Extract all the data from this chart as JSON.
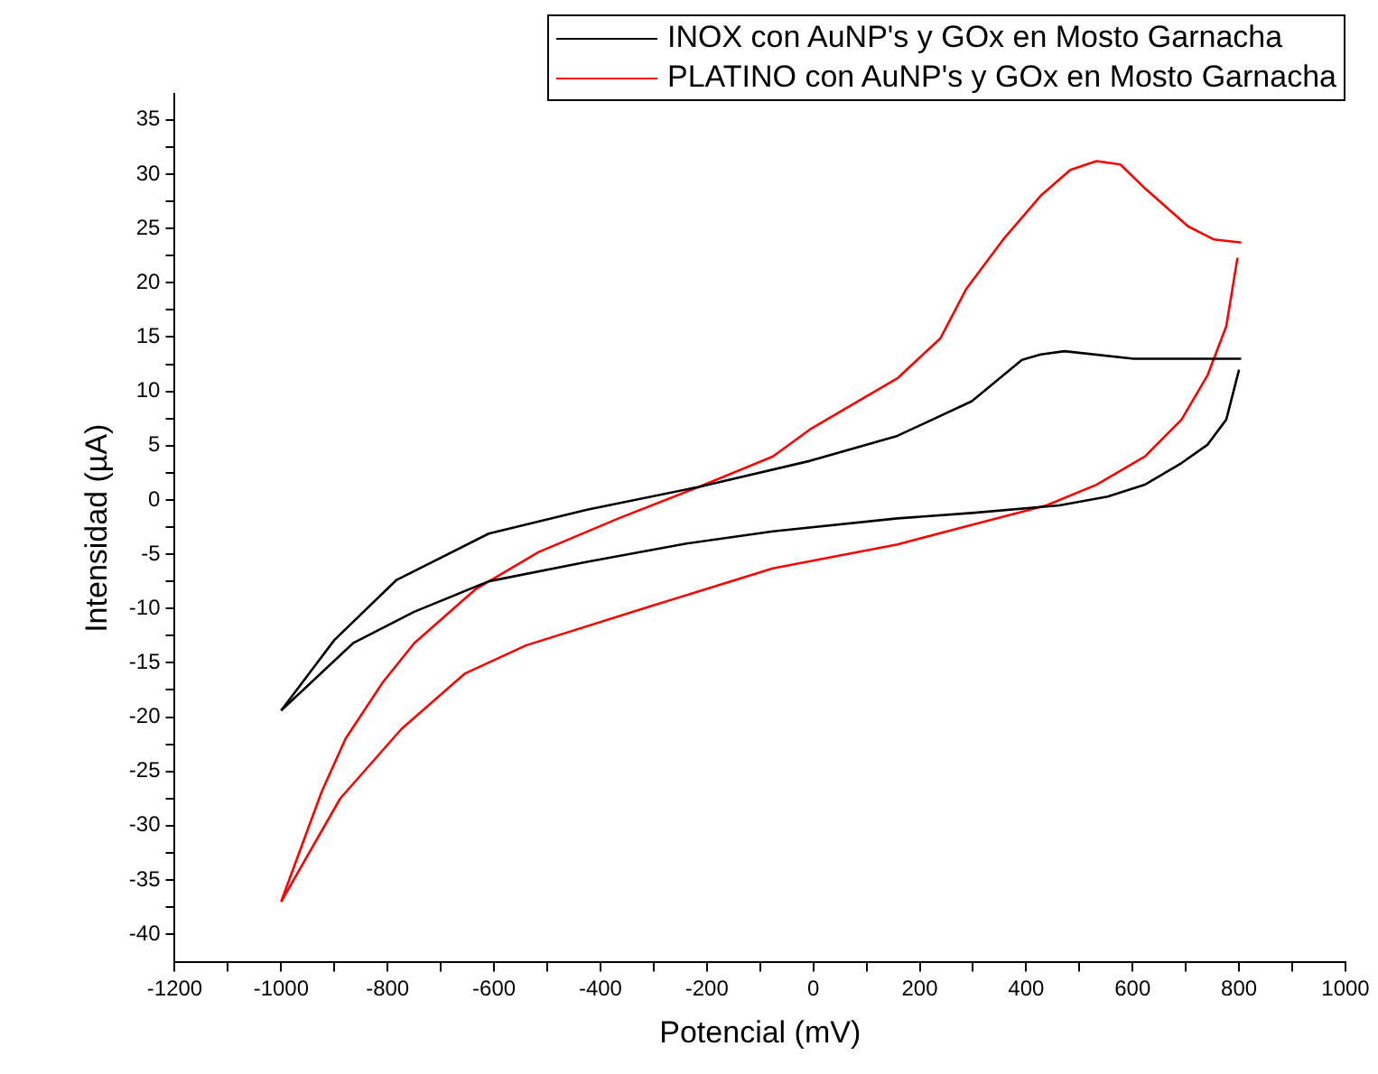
{
  "chart_data": {
    "type": "line",
    "xlabel": "Potencial (mV)",
    "ylabel": "Intensidad (µA)",
    "xlim": [
      -1200,
      1000
    ],
    "ylim": [
      -42.6,
      37.4
    ],
    "xticks": [
      -1200,
      {
        "value": -1100,
        "label": null
      },
      -1000,
      {
        "value": -900,
        "label": null
      },
      -800,
      {
        "value": -700,
        "label": null
      },
      -600,
      {
        "value": -500,
        "label": null
      },
      -400,
      {
        "value": -300,
        "label": null
      },
      -200,
      {
        "value": -100,
        "label": null
      },
      0,
      {
        "value": 100,
        "label": null
      },
      200,
      {
        "value": 300,
        "label": null
      },
      400,
      {
        "value": 500,
        "label": null
      },
      600,
      {
        "value": 700,
        "label": null
      },
      800,
      {
        "value": 900,
        "label": null
      },
      1000
    ],
    "yticks": [
      -40,
      {
        "value": -37.5,
        "label": null
      },
      -35,
      {
        "value": -32.5,
        "label": null
      },
      -30,
      {
        "value": -27.5,
        "label": null
      },
      -25,
      {
        "value": -22.5,
        "label": null
      },
      -20,
      {
        "value": -17.5,
        "label": null
      },
      -15,
      {
        "value": -12.5,
        "label": null
      },
      -10,
      {
        "value": -7.5,
        "label": null
      },
      -5,
      {
        "value": -2.5,
        "label": null
      },
      0,
      {
        "value": 2.5,
        "label": null
      },
      5,
      {
        "value": 7.5,
        "label": null
      },
      10,
      {
        "value": 12.5,
        "label": null
      },
      15,
      {
        "value": 17.5,
        "label": null
      },
      20,
      {
        "value": 22.5,
        "label": null
      },
      25,
      {
        "value": 27.5,
        "label": null
      },
      30,
      {
        "value": 32.5,
        "label": null
      },
      35
    ],
    "grid": false,
    "legend": "top right",
    "marker": "none",
    "line_style": "solid",
    "series": [
      {
        "name": "INOX con AuNP's y GOx en Mosto Garnacha",
        "color": "#000000",
        "x": [
          -1000,
          -900,
          -784,
          -610,
          -425,
          -215,
          -6,
          158,
          298,
          392,
          427,
          472,
          602,
          804
        ],
        "values": [
          -19.4,
          -12.9,
          -7.4,
          -3.1,
          -0.9,
          1.2,
          3.6,
          5.9,
          9.1,
          12.9,
          13.4,
          13.7,
          13.0,
          13.0
        ]
      },
      {
        "color": "#000000",
        "x": [
          -1000,
          -865,
          -750,
          -610,
          -425,
          -236,
          -76,
          158,
          298,
          462,
          553,
          623,
          692,
          741,
          776,
          800
        ],
        "values": [
          -19.4,
          -13.2,
          -10.3,
          -7.5,
          -5.7,
          -4.0,
          -2.9,
          -1.7,
          -1.2,
          -0.5,
          0.3,
          1.4,
          3.4,
          5.1,
          7.4,
          12.0
        ]
      },
      {
        "name": "PLATINO con AuNP's y GOx en Mosto Garnacha",
        "color": "#ff0000",
        "x": [
          -1000,
          -924,
          -879,
          -809,
          -750,
          -634,
          -516,
          -366,
          -215,
          -76,
          -6,
          158,
          239,
          287,
          357,
          427,
          483,
          532,
          577,
          623,
          704,
          752,
          804
        ],
        "values": [
          -37,
          -26.9,
          -22,
          -16.8,
          -13.2,
          -8.2,
          -4.8,
          -1.7,
          1.2,
          4.0,
          6.5,
          11.2,
          14.9,
          19.4,
          24,
          28,
          30.4,
          31.2,
          30.9,
          28.7,
          25.2,
          24,
          23.7
        ]
      },
      {
        "color": "#ff0000",
        "x": [
          -1000,
          -889,
          -774,
          -655,
          -540,
          -306,
          -76,
          158,
          274,
          438,
          532,
          623,
          692,
          741,
          776,
          797
        ],
        "values": [
          -37,
          -27.5,
          -21.1,
          -16,
          -13.4,
          -9.8,
          -6.3,
          -4.1,
          -2.6,
          -0.5,
          1.4,
          4,
          7.4,
          11.5,
          16,
          22.3
        ]
      }
    ]
  }
}
